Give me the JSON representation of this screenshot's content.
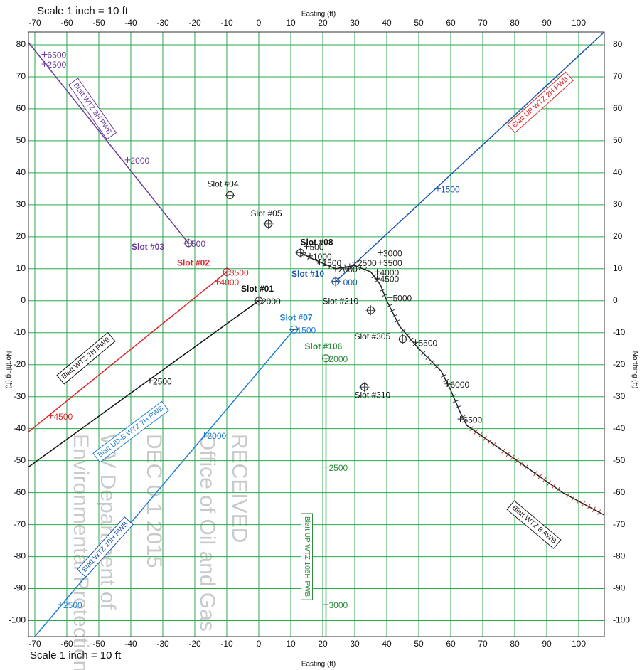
{
  "chart_data": {
    "type": "line",
    "scale_note_top": "Scale 1 inch = 10 ft",
    "scale_note_bottom": "Scale 1 inch = 10 ft",
    "xlabel_top": "Easting (ft)",
    "xlabel_bottom": "Easting (ft)",
    "ylabel_left": "Northing (ft)",
    "ylabel_right": "Northing (ft)",
    "xlim": [
      -72,
      108
    ],
    "ylim": [
      -105,
      84
    ],
    "xticks": [
      -70,
      -60,
      -50,
      -40,
      -30,
      -20,
      -10,
      0,
      10,
      20,
      30,
      40,
      50,
      60,
      70,
      80,
      90,
      100
    ],
    "yticks": [
      -100,
      -90,
      -80,
      -70,
      -60,
      -50,
      -40,
      -30,
      -20,
      -10,
      0,
      10,
      20,
      30,
      40,
      50,
      60,
      70,
      80
    ],
    "grid": true,
    "grid_color": "#2aa84a",
    "series": [
      {
        "name": "Blatt WTZ 3H PWB",
        "color": "#6a3d9a",
        "x": [
          -22,
          -73
        ],
        "y": [
          18,
          82
        ],
        "depth_labels": [
          {
            "x": -22,
            "y": 18,
            "depth": 500
          },
          {
            "x": -41,
            "y": 44,
            "depth": 2000
          },
          {
            "x": -67,
            "y": 74,
            "depth": 2500
          },
          {
            "x": -67,
            "y": 77,
            "depth": 6500
          }
        ]
      },
      {
        "name": "Blatt UP WTZ 2H PWB",
        "color": "#e0262b",
        "x": [
          -10,
          -72
        ],
        "y": [
          9,
          -41
        ],
        "depth_labels": [
          {
            "x": -10,
            "y": 9,
            "depth": 3500
          },
          {
            "x": -13,
            "y": 6,
            "depth": 4000
          },
          {
            "x": -65,
            "y": -36,
            "depth": 4500
          }
        ]
      },
      {
        "name": "Blatt WTZ 1H PWB",
        "color": "#111111",
        "x": [
          0,
          -72
        ],
        "y": [
          0,
          -52
        ],
        "depth_labels": [
          {
            "x": 0,
            "y": 0,
            "depth": 2000
          },
          {
            "x": -34,
            "y": -25,
            "depth": 2500
          }
        ]
      },
      {
        "name": "Blatt UD-B WTZ 7H PWB",
        "color": "#1f7fd8",
        "x": [
          11,
          -70
        ],
        "y": [
          -9,
          -105
        ],
        "depth_labels": [
          {
            "x": 11,
            "y": -9,
            "depth": 1500
          },
          {
            "x": -17,
            "y": -42,
            "depth": 2000
          },
          {
            "x": -62,
            "y": -95,
            "depth": 2500
          }
        ]
      },
      {
        "name": "Blatt WTZ 10H PWB",
        "color": "#1a56b0",
        "x": [
          24,
          108
        ],
        "y": [
          6,
          84
        ],
        "depth_labels": [
          {
            "x": 24,
            "y": 6,
            "depth": 1000
          },
          {
            "x": 56,
            "y": 35,
            "depth": 1500
          }
        ]
      },
      {
        "name": "Blatt UP WTZ 106H PWB",
        "color": "#2e8b3e",
        "x": [
          21,
          21
        ],
        "y": [
          -18,
          -105
        ],
        "depth_labels": [
          {
            "x": 21,
            "y": -18,
            "depth": 2000
          },
          {
            "x": 21,
            "y": -52,
            "depth": 2500
          },
          {
            "x": 21,
            "y": -95,
            "depth": 3000
          }
        ]
      },
      {
        "name": "Blatt WTZ 8 AWB",
        "color": "#222222",
        "x": [
          13,
          17,
          24,
          30,
          35,
          38,
          40,
          44,
          50,
          57,
          60,
          63,
          65,
          75,
          85,
          95,
          108
        ],
        "y": [
          15,
          13,
          10,
          11,
          9,
          5,
          0,
          -8,
          -15,
          -22,
          -28,
          -35,
          -39,
          -46,
          -53,
          -60,
          -67
        ],
        "depth_labels": [
          {
            "x": 15,
            "y": 17,
            "depth": 500
          },
          {
            "x": 16,
            "y": 14,
            "depth": 1000
          },
          {
            "x": 19,
            "y": 12,
            "depth": 1500
          },
          {
            "x": 24,
            "y": 10,
            "depth": 2000
          },
          {
            "x": 30,
            "y": 12,
            "depth": 2500
          },
          {
            "x": 38,
            "y": 15,
            "depth": 3000
          },
          {
            "x": 38,
            "y": 12,
            "depth": 3500
          },
          {
            "x": 37,
            "y": 9,
            "depth": 4000
          },
          {
            "x": 37,
            "y": 7,
            "depth": 4500
          },
          {
            "x": 41,
            "y": 1,
            "depth": 5000
          },
          {
            "x": 49,
            "y": -13,
            "depth": 5500
          },
          {
            "x": 59,
            "y": -26,
            "depth": 6000
          },
          {
            "x": 63,
            "y": -37,
            "depth": 6500
          }
        ]
      }
    ],
    "slots": [
      {
        "label": "Slot #01",
        "x": 0,
        "y": 0,
        "color": "#111111",
        "bold": true
      },
      {
        "label": "Slot #02",
        "x": -10,
        "y": 9,
        "color": "#e0262b",
        "bold": true
      },
      {
        "label": "Slot #03",
        "x": -22,
        "y": 18,
        "color": "#6a3d9a",
        "bold": true
      },
      {
        "label": "Slot #04",
        "x": -9,
        "y": 33,
        "color": "#111111",
        "bold": false
      },
      {
        "label": "Slot #05",
        "x": 3,
        "y": 24,
        "color": "#111111",
        "bold": false
      },
      {
        "label": "Slot #07",
        "x": 11,
        "y": -9,
        "color": "#1f7fd8",
        "bold": true
      },
      {
        "label": "Slot #08",
        "x": 13,
        "y": 15,
        "color": "#111111",
        "bold": true
      },
      {
        "label": "Slot #10",
        "x": 24,
        "y": 6,
        "color": "#1a56b0",
        "bold": true
      },
      {
        "label": "Slot #106",
        "x": 21,
        "y": -18,
        "color": "#2e8b3e",
        "bold": true
      },
      {
        "label": "Slot #210",
        "x": 35,
        "y": -3,
        "color": "#111111",
        "bold": false
      },
      {
        "label": "Slot #305",
        "x": 45,
        "y": -12,
        "color": "#111111",
        "bold": false
      },
      {
        "label": "Slot #310",
        "x": 33,
        "y": -27,
        "color": "#111111",
        "bold": false
      }
    ],
    "stamp": [
      "RECEIVED",
      "Office of Oil and Gas",
      "DEC 0 1 2015",
      "WV Department of",
      "Environmental Protection"
    ]
  }
}
